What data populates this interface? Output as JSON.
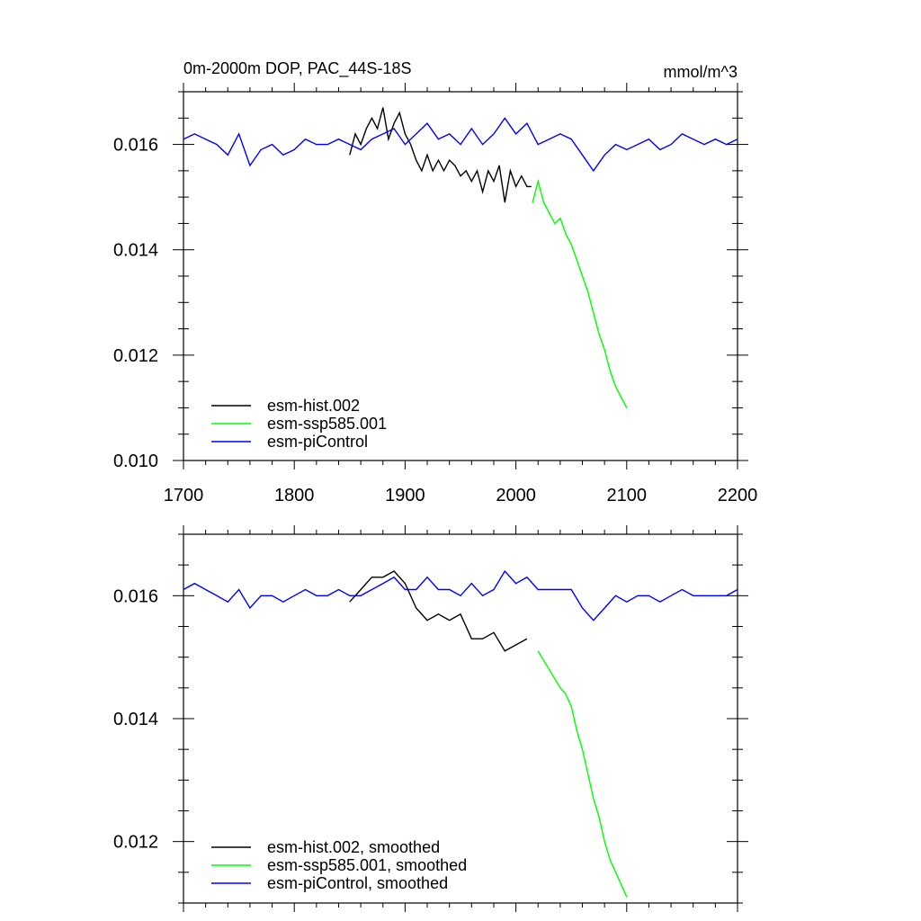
{
  "chart_data": [
    {
      "type": "line",
      "title": "0m-2000m DOP, PAC_44S-18S",
      "units": "mmol/m^3",
      "xlim": [
        1700,
        2200
      ],
      "ylim": [
        0.01,
        0.017
      ],
      "x_ticks": [
        "1700",
        "1800",
        "1900",
        "2000",
        "2100",
        "2200"
      ],
      "y_ticks": [
        "0.010",
        "0.012",
        "0.014",
        "0.016"
      ],
      "legend": [
        "esm-hist.002",
        "esm-ssp585.001",
        "esm-piControl"
      ],
      "series": [
        {
          "name": "esm-hist.002",
          "color": "#000000",
          "x": [
            1850,
            1855,
            1860,
            1865,
            1870,
            1875,
            1880,
            1885,
            1890,
            1895,
            1900,
            1905,
            1910,
            1915,
            1920,
            1925,
            1930,
            1935,
            1940,
            1945,
            1950,
            1955,
            1960,
            1965,
            1970,
            1975,
            1980,
            1985,
            1990,
            1995,
            2000,
            2005,
            2010,
            2014
          ],
          "y": [
            0.0158,
            0.0162,
            0.016,
            0.0163,
            0.0165,
            0.0163,
            0.0167,
            0.0161,
            0.0164,
            0.0166,
            0.0162,
            0.016,
            0.0157,
            0.0155,
            0.0158,
            0.0155,
            0.0157,
            0.0155,
            0.0157,
            0.0156,
            0.0154,
            0.0155,
            0.0153,
            0.0155,
            0.0151,
            0.0155,
            0.0153,
            0.0156,
            0.0149,
            0.0155,
            0.0152,
            0.0154,
            0.0152,
            0.0152
          ]
        },
        {
          "name": "esm-ssp585.001",
          "color": "#00ff00",
          "x": [
            2015,
            2020,
            2025,
            2030,
            2035,
            2040,
            2045,
            2050,
            2055,
            2060,
            2065,
            2070,
            2075,
            2080,
            2085,
            2090,
            2095,
            2100
          ],
          "y": [
            0.0149,
            0.0153,
            0.0149,
            0.0147,
            0.0145,
            0.0146,
            0.0143,
            0.0141,
            0.0138,
            0.0135,
            0.0132,
            0.0128,
            0.0124,
            0.0121,
            0.0117,
            0.0114,
            0.0112,
            0.011
          ]
        },
        {
          "name": "esm-piControl",
          "color": "#0000ff",
          "x": [
            1700,
            1710,
            1720,
            1730,
            1740,
            1750,
            1760,
            1770,
            1780,
            1790,
            1800,
            1810,
            1820,
            1830,
            1840,
            1850,
            1860,
            1870,
            1880,
            1890,
            1900,
            1910,
            1920,
            1930,
            1940,
            1950,
            1960,
            1970,
            1980,
            1990,
            2000,
            2010,
            2020,
            2030,
            2040,
            2050,
            2060,
            2070,
            2080,
            2090,
            2100,
            2110,
            2120,
            2130,
            2140,
            2150,
            2160,
            2170,
            2180,
            2190,
            2200
          ],
          "y": [
            0.0161,
            0.0162,
            0.0161,
            0.016,
            0.0158,
            0.0162,
            0.0156,
            0.0159,
            0.016,
            0.0158,
            0.0159,
            0.0161,
            0.016,
            0.016,
            0.0161,
            0.016,
            0.0159,
            0.0161,
            0.0162,
            0.0163,
            0.016,
            0.0162,
            0.0164,
            0.0161,
            0.0162,
            0.016,
            0.0163,
            0.016,
            0.0162,
            0.0165,
            0.0162,
            0.0164,
            0.016,
            0.0161,
            0.0162,
            0.0161,
            0.0158,
            0.0155,
            0.0158,
            0.016,
            0.0159,
            0.016,
            0.0161,
            0.0159,
            0.016,
            0.0162,
            0.0161,
            0.016,
            0.0161,
            0.016,
            0.0161
          ]
        }
      ]
    },
    {
      "type": "line",
      "title": "",
      "xlim": [
        1700,
        2200
      ],
      "ylim": [
        0.011,
        0.017
      ],
      "y_ticks": [
        "0.012",
        "0.014",
        "0.016"
      ],
      "legend": [
        "esm-hist.002, smoothed",
        "esm-ssp585.001, smoothed",
        "esm-piControl, smoothed"
      ],
      "series": [
        {
          "name": "esm-hist.002, smoothed",
          "color": "#000000",
          "x": [
            1850,
            1860,
            1870,
            1880,
            1890,
            1900,
            1910,
            1920,
            1930,
            1940,
            1950,
            1960,
            1970,
            1980,
            1990,
            2000,
            2010
          ],
          "y": [
            0.0159,
            0.0161,
            0.0163,
            0.0163,
            0.0164,
            0.0162,
            0.0158,
            0.0156,
            0.0157,
            0.0156,
            0.0157,
            0.0153,
            0.0153,
            0.0154,
            0.0151,
            0.0152,
            0.0153
          ]
        },
        {
          "name": "esm-ssp585.001, smoothed",
          "color": "#00ff00",
          "x": [
            2020,
            2030,
            2040,
            2045,
            2050,
            2055,
            2060,
            2065,
            2070,
            2075,
            2080,
            2085,
            2090,
            2095,
            2100
          ],
          "y": [
            0.0151,
            0.0148,
            0.0145,
            0.0144,
            0.0142,
            0.0138,
            0.0135,
            0.0131,
            0.0127,
            0.0124,
            0.012,
            0.0117,
            0.0115,
            0.0113,
            0.0111
          ]
        },
        {
          "name": "esm-piControl, smoothed",
          "color": "#0000ff",
          "x": [
            1700,
            1710,
            1720,
            1730,
            1740,
            1750,
            1760,
            1770,
            1780,
            1790,
            1800,
            1810,
            1820,
            1830,
            1840,
            1850,
            1860,
            1870,
            1880,
            1890,
            1900,
            1910,
            1920,
            1930,
            1940,
            1950,
            1960,
            1970,
            1980,
            1990,
            2000,
            2010,
            2020,
            2030,
            2040,
            2050,
            2060,
            2070,
            2080,
            2090,
            2100,
            2110,
            2120,
            2130,
            2140,
            2150,
            2160,
            2170,
            2180,
            2190,
            2200
          ],
          "y": [
            0.0161,
            0.0162,
            0.0161,
            0.016,
            0.0159,
            0.0161,
            0.0158,
            0.016,
            0.016,
            0.0159,
            0.016,
            0.0161,
            0.016,
            0.016,
            0.0161,
            0.016,
            0.016,
            0.0161,
            0.0162,
            0.0163,
            0.0161,
            0.0161,
            0.0163,
            0.0161,
            0.0161,
            0.016,
            0.0162,
            0.016,
            0.0161,
            0.0164,
            0.0162,
            0.0163,
            0.0161,
            0.0161,
            0.0161,
            0.0161,
            0.0158,
            0.0156,
            0.0158,
            0.016,
            0.0159,
            0.016,
            0.016,
            0.0159,
            0.016,
            0.0161,
            0.016,
            0.016,
            0.016,
            0.016,
            0.0161
          ]
        }
      ]
    }
  ]
}
